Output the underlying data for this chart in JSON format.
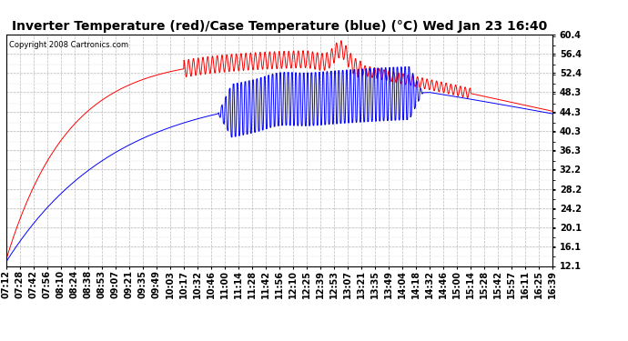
{
  "title": "Inverter Temperature (red)/Case Temperature (blue) (°C) Wed Jan 23 16:40",
  "copyright": "Copyright 2008 Cartronics.com",
  "yticks": [
    12.1,
    16.1,
    20.1,
    24.2,
    28.2,
    32.2,
    36.3,
    40.3,
    44.3,
    48.3,
    52.4,
    56.4,
    60.4
  ],
  "ymin": 12.1,
  "ymax": 60.4,
  "background_color": "#ffffff",
  "plot_bg_color": "#ffffff",
  "grid_color": "#bbbbbb",
  "red_color": "#ff0000",
  "blue_color": "#0000ff",
  "title_fontsize": 10,
  "tick_fontsize": 7,
  "xtick_labels": [
    "07:12",
    "07:28",
    "07:42",
    "07:56",
    "08:10",
    "08:24",
    "08:38",
    "08:53",
    "09:07",
    "09:21",
    "09:35",
    "09:49",
    "10:03",
    "10:17",
    "10:32",
    "10:46",
    "11:00",
    "11:14",
    "11:28",
    "11:42",
    "11:56",
    "12:10",
    "12:25",
    "12:39",
    "12:53",
    "13:07",
    "13:21",
    "13:35",
    "13:49",
    "14:04",
    "14:18",
    "14:32",
    "14:46",
    "15:00",
    "15:14",
    "15:28",
    "15:42",
    "15:57",
    "16:11",
    "16:25",
    "16:39"
  ],
  "n_xticks": 41
}
